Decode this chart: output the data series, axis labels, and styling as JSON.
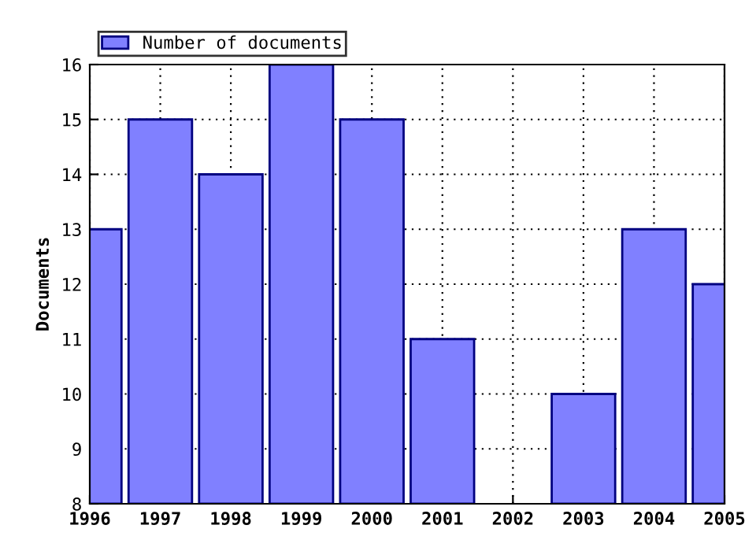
{
  "chart_data": {
    "type": "bar",
    "ylabel": "Documents",
    "x": [
      1996,
      1997,
      1998,
      1999,
      2000,
      2001,
      2002,
      2003,
      2004,
      2005
    ],
    "series": [
      {
        "name": "Number of documents",
        "color": "#8080ff",
        "values": [
          13,
          15,
          14,
          16,
          15,
          11,
          null,
          10,
          13,
          12
        ]
      }
    ],
    "xlim": [
      1996,
      2005
    ],
    "xticks": [
      1996,
      1997,
      1998,
      1999,
      2000,
      2001,
      2002,
      2003,
      2004,
      2005
    ],
    "ylim": [
      8,
      16
    ],
    "yticks": [
      8,
      9,
      10,
      11,
      12,
      13,
      14,
      15,
      16
    ],
    "grid": true,
    "legend": "top left"
  }
}
